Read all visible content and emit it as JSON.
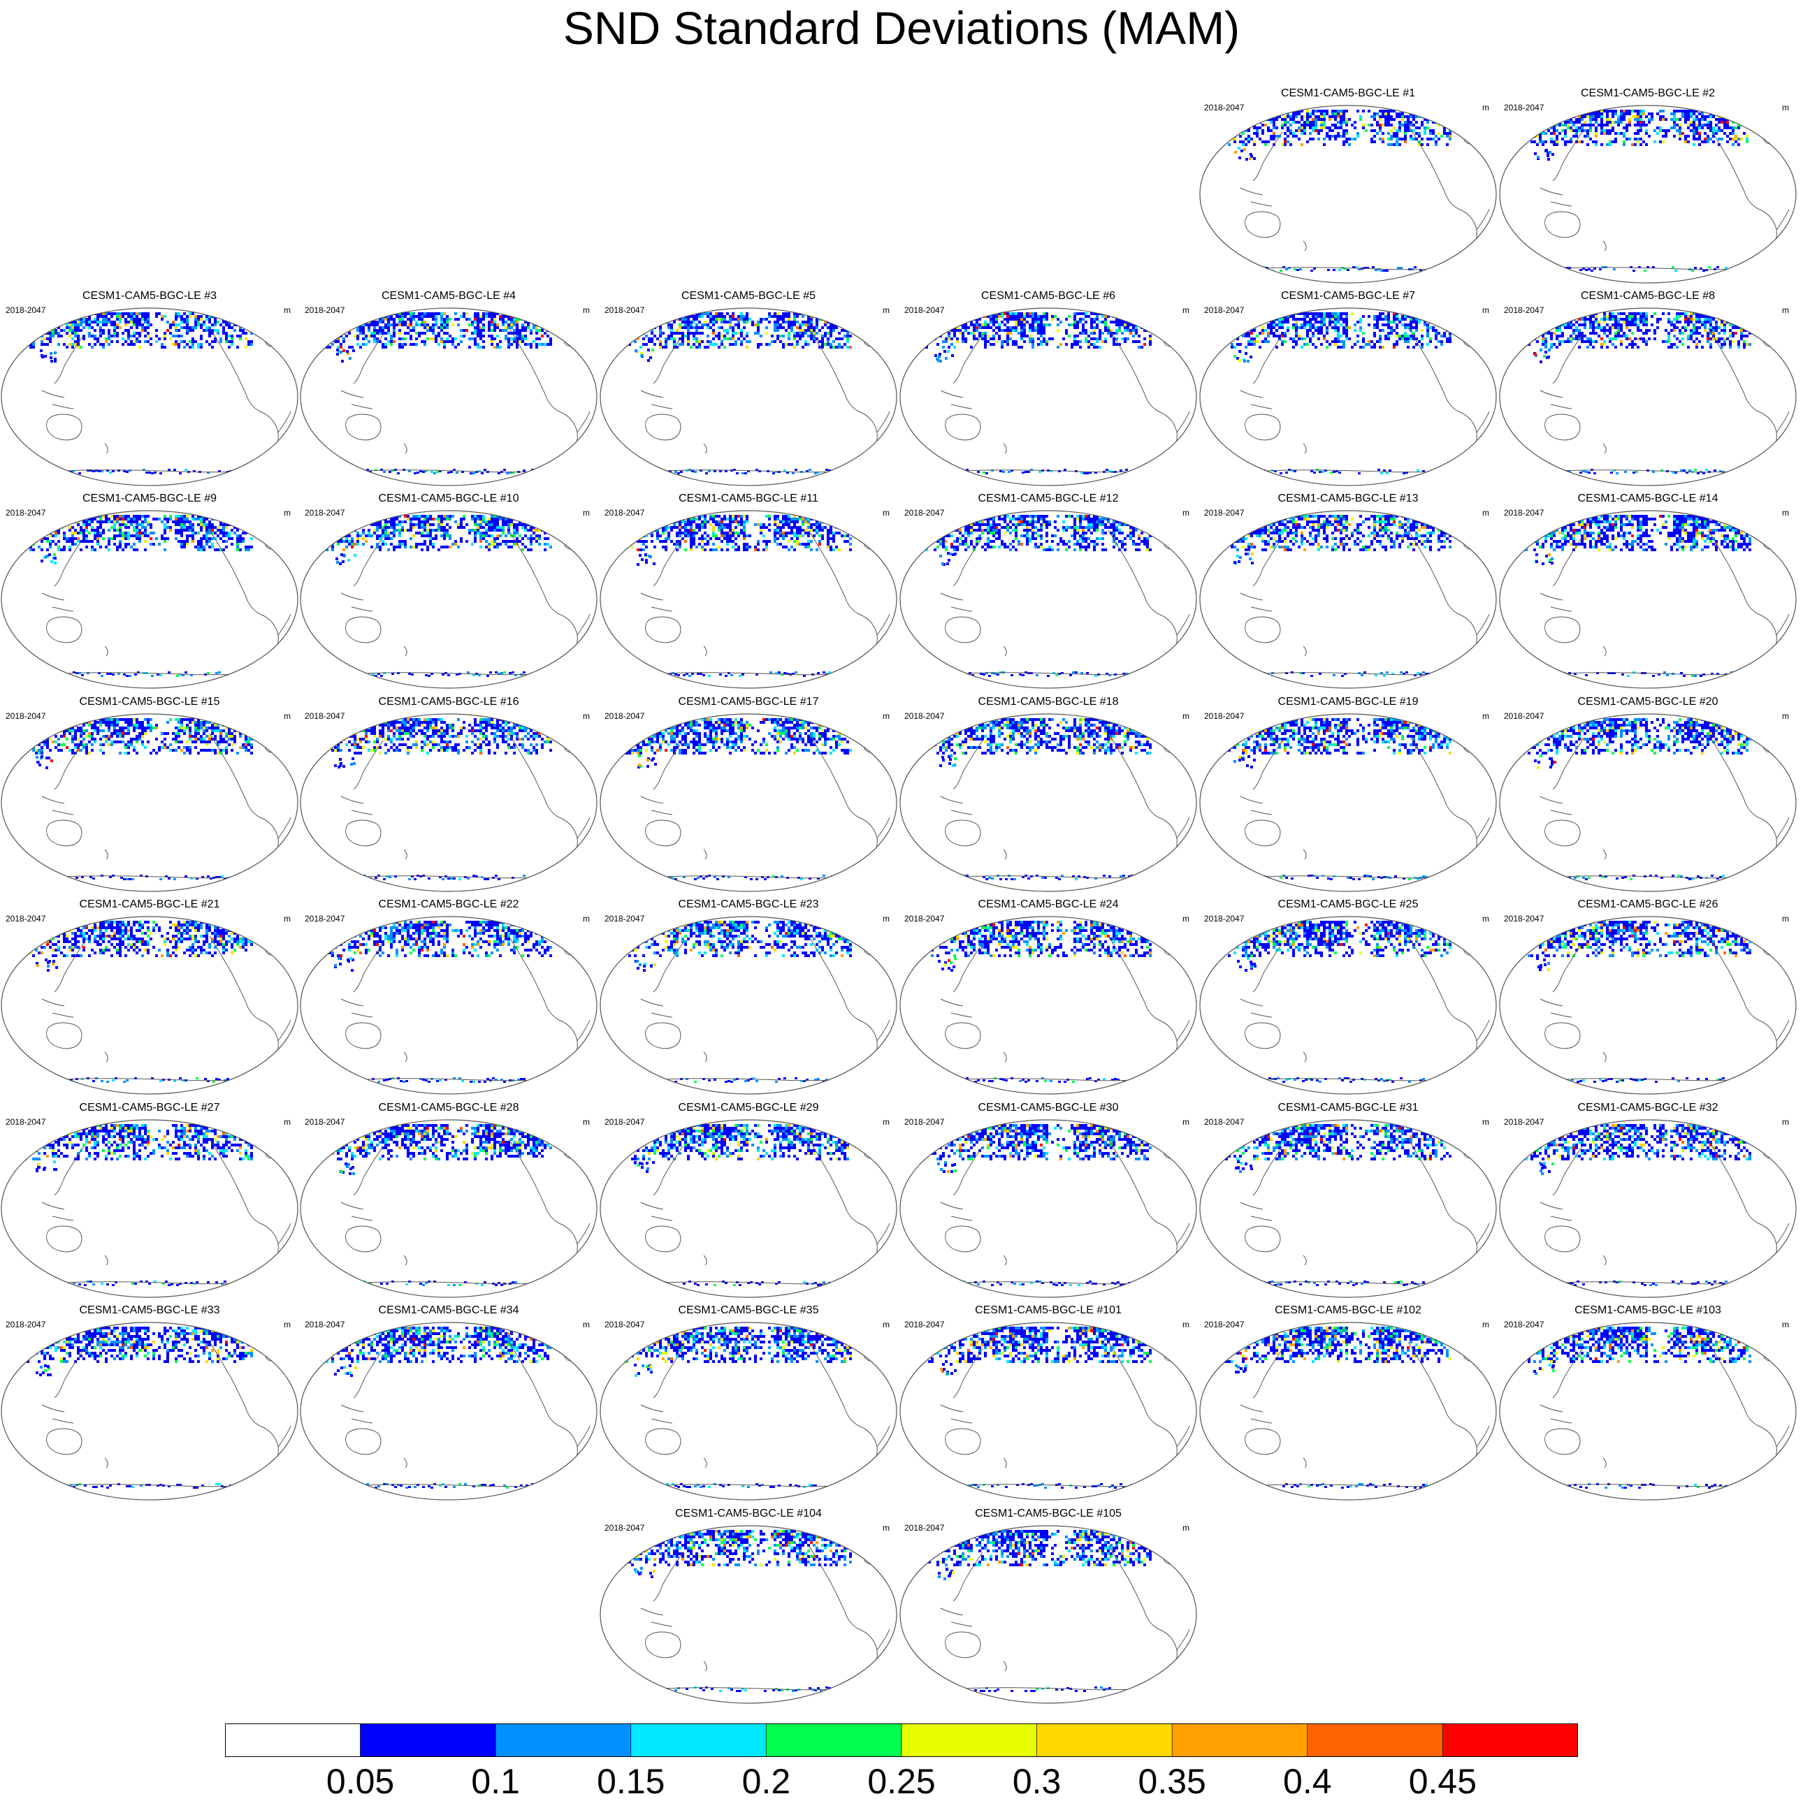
{
  "title": "SND Standard Deviations (MAM)",
  "panel_period": "2018-2047",
  "panel_units": "m",
  "panels": [
    "CESM1-CAM5-BGC-LE #1",
    "CESM1-CAM5-BGC-LE #2",
    "CESM1-CAM5-BGC-LE #3",
    "CESM1-CAM5-BGC-LE #4",
    "CESM1-CAM5-BGC-LE #5",
    "CESM1-CAM5-BGC-LE #6",
    "CESM1-CAM5-BGC-LE #7",
    "CESM1-CAM5-BGC-LE #8",
    "CESM1-CAM5-BGC-LE #9",
    "CESM1-CAM5-BGC-LE #10",
    "CESM1-CAM5-BGC-LE #11",
    "CESM1-CAM5-BGC-LE #12",
    "CESM1-CAM5-BGC-LE #13",
    "CESM1-CAM5-BGC-LE #14",
    "CESM1-CAM5-BGC-LE #15",
    "CESM1-CAM5-BGC-LE #16",
    "CESM1-CAM5-BGC-LE #17",
    "CESM1-CAM5-BGC-LE #18",
    "CESM1-CAM5-BGC-LE #19",
    "CESM1-CAM5-BGC-LE #20",
    "CESM1-CAM5-BGC-LE #21",
    "CESM1-CAM5-BGC-LE #22",
    "CESM1-CAM5-BGC-LE #23",
    "CESM1-CAM5-BGC-LE #24",
    "CESM1-CAM5-BGC-LE #25",
    "CESM1-CAM5-BGC-LE #26",
    "CESM1-CAM5-BGC-LE #27",
    "CESM1-CAM5-BGC-LE #28",
    "CESM1-CAM5-BGC-LE #29",
    "CESM1-CAM5-BGC-LE #30",
    "CESM1-CAM5-BGC-LE #31",
    "CESM1-CAM5-BGC-LE #32",
    "CESM1-CAM5-BGC-LE #33",
    "CESM1-CAM5-BGC-LE #34",
    "CESM1-CAM5-BGC-LE #35",
    "CESM1-CAM5-BGC-LE #101",
    "CESM1-CAM5-BGC-LE #102",
    "CESM1-CAM5-BGC-LE #103",
    "CESM1-CAM5-BGC-LE #104",
    "CESM1-CAM5-BGC-LE #105"
  ],
  "colorbar": {
    "labels": [
      "0.05",
      "0.1",
      "0.15",
      "0.2",
      "0.25",
      "0.3",
      "0.35",
      "0.4",
      "0.45"
    ],
    "colors": [
      "#ffffff",
      "#0000ff",
      "#0090ff",
      "#00e8ff",
      "#00ff50",
      "#e8ff00",
      "#ffd800",
      "#ffa000",
      "#ff6400",
      "#ff0000"
    ]
  }
}
